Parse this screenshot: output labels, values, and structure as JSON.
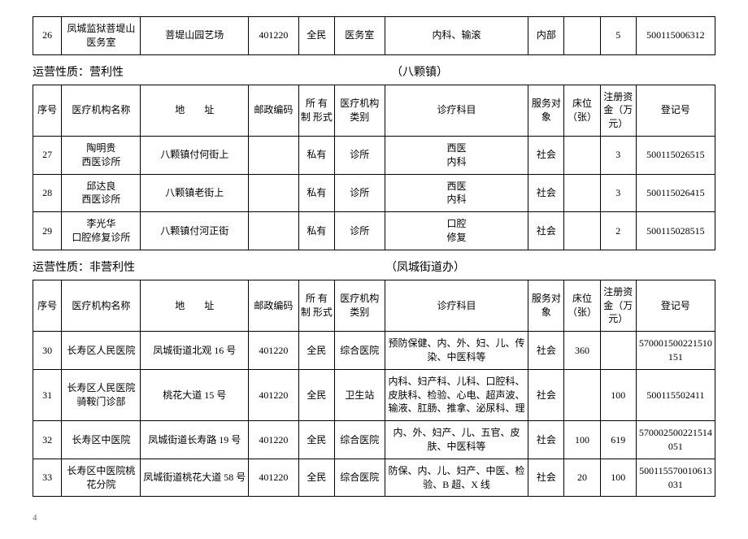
{
  "columns": {
    "seq": "序号",
    "name": "医疗机构名称",
    "addr": "地　　址",
    "zip": "邮政编码",
    "ownership": "所 有 制 形式",
    "category": "医疗机构类别",
    "dept": "诊疗科目",
    "target": "服务对象",
    "beds": "床位（张）",
    "capital": "注册资金（万元）",
    "regno": "登记号"
  },
  "table1_rows": [
    {
      "seq": "26",
      "name": "凤城监狱菩堤山医务室",
      "addr": "菩堤山园艺场",
      "zip": "401220",
      "ownership": "全民",
      "category": "医务室",
      "dept": "内科、输滚",
      "target": "内部",
      "beds": "",
      "capital": "5",
      "regno": "500115006312"
    }
  ],
  "title2_left": "运营性质：营利性",
  "title2_right": "（八颗镇）",
  "table2_rows": [
    {
      "seq": "27",
      "name": "陶明贵\n西医诊所",
      "addr": "八颗镇付何街上",
      "zip": "",
      "ownership": "私有",
      "category": "诊所",
      "dept": "西医\n内科",
      "target": "社会",
      "beds": "",
      "capital": "3",
      "regno": "500115026515"
    },
    {
      "seq": "28",
      "name": "邱达良\n西医诊所",
      "addr": "八颗镇老街上",
      "zip": "",
      "ownership": "私有",
      "category": "诊所",
      "dept": "西医\n内科",
      "target": "社会",
      "beds": "",
      "capital": "3",
      "regno": "500115026415"
    },
    {
      "seq": "29",
      "name": "李光华\n口腔修复诊所",
      "addr": "八颗镇付河正街",
      "zip": "",
      "ownership": "私有",
      "category": "诊所",
      "dept": "口腔\n修复",
      "target": "社会",
      "beds": "",
      "capital": "2",
      "regno": "500115028515"
    }
  ],
  "title3_left": "运营性质：非营利性",
  "title3_right": "（凤城街道办）",
  "table3_rows": [
    {
      "seq": "30",
      "name": "长寿区人民医院",
      "addr": "凤城街道北观 16 号",
      "zip": "401220",
      "ownership": "全民",
      "category": "综合医院",
      "dept": "预防保健、内、外、妇、儿、传染、中医科等",
      "target": "社会",
      "beds": "360",
      "capital": "",
      "regno": "570001500221510151"
    },
    {
      "seq": "31",
      "name": "长寿区人民医院骑鞍门诊部",
      "addr": "桃花大道 15 号",
      "zip": "401220",
      "ownership": "全民",
      "category": "卫生站",
      "dept": "内科、妇产科、儿科、口腔科、皮肤科、检验、心电、超声波、输液、肛肠、推拿、泌尿科、理",
      "target": "社会",
      "beds": "",
      "capital": "100",
      "regno": "500115502411"
    },
    {
      "seq": "32",
      "name": "长寿区中医院",
      "addr": "凤城街道长寿路 19 号",
      "zip": "401220",
      "ownership": "全民",
      "category": "综合医院",
      "dept": "内、外、妇产、儿、五官、皮肤、中医科等",
      "target": "社会",
      "beds": "100",
      "capital": "619",
      "regno": "570002500221514051"
    },
    {
      "seq": "33",
      "name": "长寿区中医院桃花分院",
      "addr": "凤城街道桃花大道 58 号",
      "zip": "401220",
      "ownership": "全民",
      "category": "综合医院",
      "dept": "防保、内、儿、妇产、中医、检验、B 超、X 线",
      "target": "社会",
      "beds": "20",
      "capital": "100",
      "regno": "500115570010613031"
    }
  ],
  "page_number": "4",
  "col_widths": {
    "seq": "4%",
    "name": "11%",
    "addr": "15%",
    "zip": "7%",
    "ownership": "5%",
    "category": "7%",
    "dept": "20%",
    "target": "5%",
    "beds": "5%",
    "capital": "5%",
    "regno": "11%"
  }
}
